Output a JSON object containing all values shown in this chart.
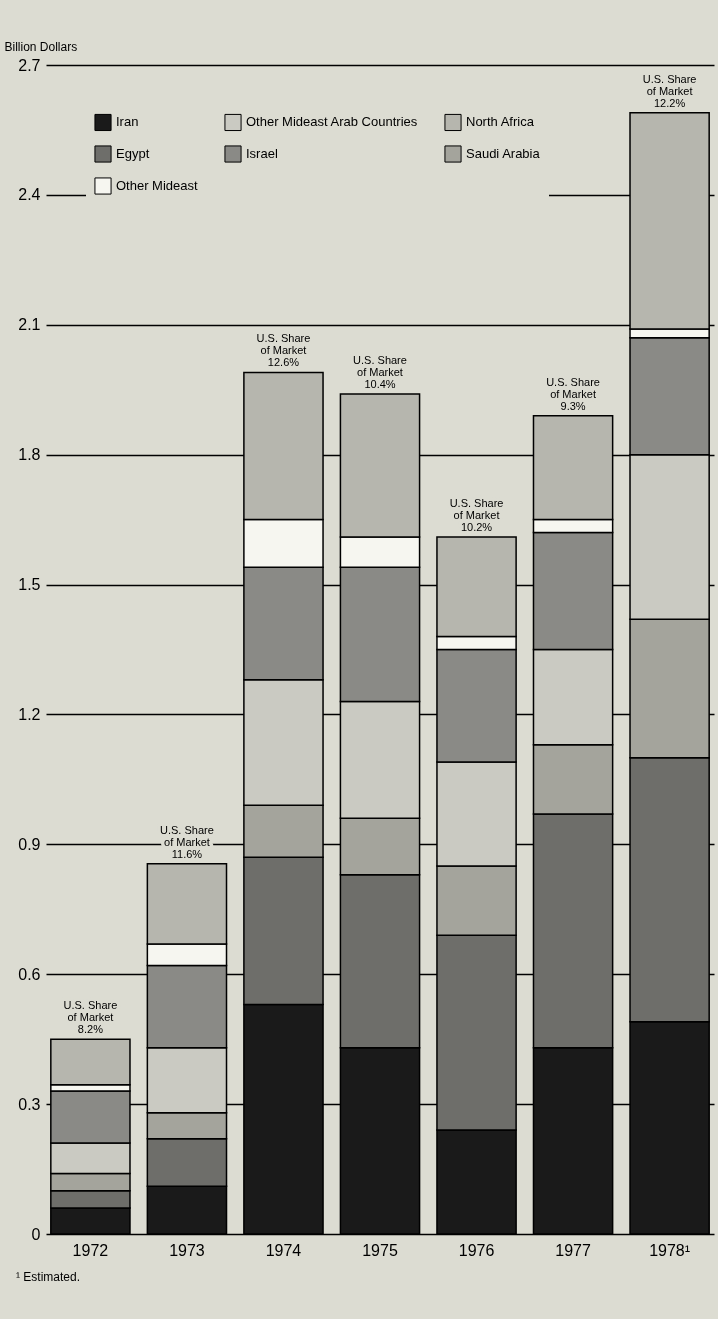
{
  "chart_data": {
    "type": "bar",
    "stacked": true,
    "ylabel": "Billion Dollars",
    "categories": [
      "1972",
      "1973",
      "1974",
      "1975",
      "1976",
      "1977",
      "1978¹"
    ],
    "series": [
      {
        "name": "Iran",
        "color": "#1a1a1a",
        "values": [
          0.06,
          0.11,
          0.53,
          0.43,
          0.24,
          0.43,
          0.49
        ]
      },
      {
        "name": "Egypt",
        "color": "#6e6e6a",
        "values": [
          0.04,
          0.11,
          0.34,
          0.4,
          0.45,
          0.54,
          0.61
        ]
      },
      {
        "name": "Saudi Arabia",
        "color": "#a4a49c",
        "values": [
          0.04,
          0.06,
          0.12,
          0.13,
          0.16,
          0.16,
          0.32
        ]
      },
      {
        "name": "Other Mideast Arab Countries",
        "color": "#cacac2",
        "values": [
          0.07,
          0.15,
          0.29,
          0.27,
          0.24,
          0.22,
          0.38
        ]
      },
      {
        "name": "Israel",
        "color": "#8a8a86",
        "values": [
          0.12,
          0.19,
          0.26,
          0.31,
          0.26,
          0.27,
          0.27
        ]
      },
      {
        "name": "Other Mideast",
        "color": "#f6f6f0",
        "values": [
          0.015,
          0.05,
          0.11,
          0.07,
          0.03,
          0.03,
          0.02
        ]
      },
      {
        "name": "North Africa",
        "color": "#b6b6ae",
        "values": [
          0.105,
          0.185,
          0.34,
          0.33,
          0.23,
          0.24,
          0.5
        ]
      }
    ],
    "ylim": [
      0,
      2.7
    ],
    "yticks": [
      0,
      0.3,
      0.6,
      0.9,
      1.2,
      1.5,
      1.8,
      2.1,
      2.4,
      2.7
    ],
    "grid": "y",
    "legend": "top left",
    "annotations": [
      {
        "text": "U.S. Share\nof Market\n8.2%",
        "x": "1972",
        "y": 0.45
      },
      {
        "text": "U.S. Share\nof Market\n11.6%",
        "x": "1973",
        "y": 0.855
      },
      {
        "text": "U.S. Share\nof Market\n12.6%",
        "x": "1974",
        "y": 1.99
      },
      {
        "text": "U.S. Share\nof Market\n10.4%",
        "x": "1975",
        "y": 1.94
      },
      {
        "text": "U.S. Share\nof Market\n10.2%",
        "x": "1976",
        "y": 1.61
      },
      {
        "text": "U.S. Share\nof Market\n9.3%",
        "x": "1977",
        "y": 1.89
      },
      {
        "text": "U.S. Share\nof Market\n12.2%",
        "x": "1978¹",
        "y": 2.59
      },
      "¹ Estimated."
    ]
  }
}
